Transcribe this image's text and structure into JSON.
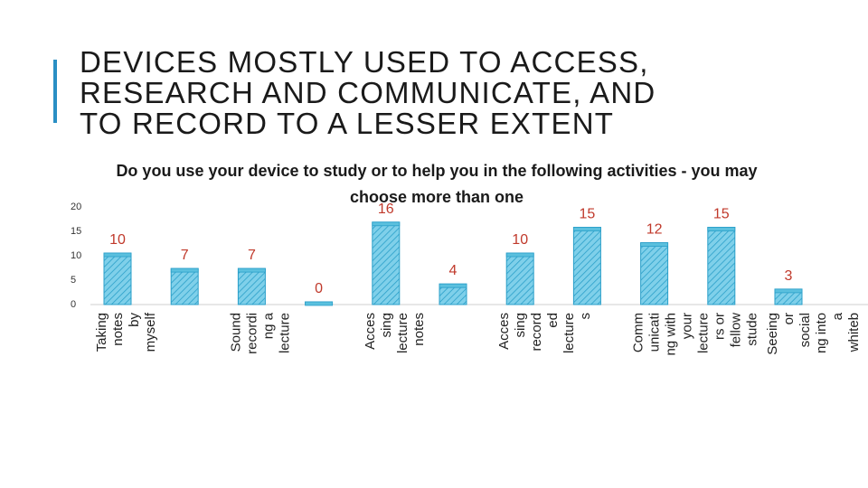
{
  "slide": {
    "title_lines": [
      "DEVICES MOSTLY USED TO ACCESS,",
      "RESEARCH AND COMMUNICATE, AND",
      "TO RECORD TO A LESSER EXTENT"
    ],
    "accent_color": "#2a8fc4"
  },
  "chart_data": {
    "type": "bar",
    "title": "Do you use your device to study or to help you in the following activities - you may choose more than one",
    "categories": [
      [
        "Taking",
        "notes",
        "by",
        "myself"
      ],
      [
        "",
        "",
        "",
        ""
      ],
      [
        "Sound",
        "recordi",
        "ng a",
        "lecture"
      ],
      [],
      [
        "Acces",
        "sing",
        "lecture",
        "notes"
      ],
      [],
      [
        "Acces",
        "sing",
        "record",
        "ed",
        "lecture",
        "s"
      ],
      [],
      [
        "Comm",
        "unicati",
        "ng with",
        "your",
        "lecture",
        "rs or",
        "fellow",
        "stude"
      ],
      [],
      [
        "Seeing",
        "or",
        "social",
        "ng into",
        "a",
        "whiteb"
      ]
    ],
    "values": [
      10,
      7,
      7,
      0,
      16,
      4,
      10,
      15,
      12,
      15,
      3
    ],
    "data_labels": [
      "10",
      "7",
      "7",
      "0",
      "16",
      "4",
      "10",
      "15",
      "12",
      "15",
      "3"
    ],
    "y_ticks": [
      "0",
      "5",
      "10",
      "15",
      "20"
    ],
    "ylim": [
      0,
      20
    ],
    "grid": false,
    "legend": "none",
    "bar_color": "#5bc0de",
    "bar_hatch_color": "#2a9fc9",
    "label_color": "#c0392b"
  }
}
